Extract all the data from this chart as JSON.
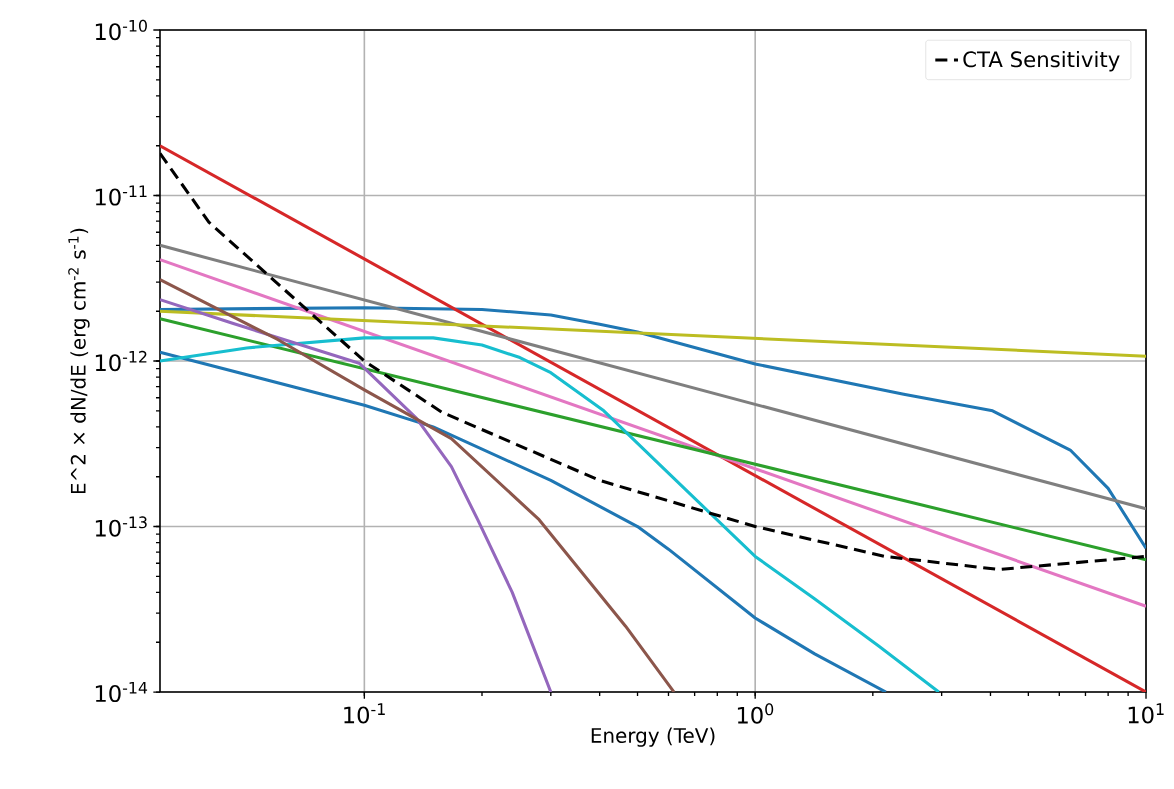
{
  "chart_data": {
    "type": "line",
    "xlabel": "Energy (TeV)",
    "ylabel": "E^2 × dN/dE (erg cm$^{-2}$ s$^{-1}$)",
    "log": "xy",
    "grid": true,
    "legend": "top right",
    "xlim": [
      0.03,
      10
    ],
    "ylim": [
      1e-14,
      1e-10
    ],
    "xticks": [
      {
        "value": 0.1,
        "label": "10$^{-1}$"
      },
      {
        "value": 1,
        "label": "10$^{0}$"
      },
      {
        "value": 10,
        "label": "10$^{1}$"
      }
    ],
    "yticks": [
      {
        "value": 1e-14,
        "label": "10$^{-14}$"
      },
      {
        "value": 1e-13,
        "label": "10$^{-13}$"
      },
      {
        "value": 1e-12,
        "label": "10$^{-12}$"
      },
      {
        "value": 1e-11,
        "label": "10$^{-11}$"
      },
      {
        "value": 1e-10,
        "label": "10$^{-10}$"
      }
    ],
    "series": [
      {
        "color": "#1f77b4",
        "x": [
          0.03,
          0.1,
          0.2,
          0.3,
          0.4,
          0.5,
          1.0,
          2.4,
          4.05,
          6.4,
          8.0,
          10
        ],
        "values": [
          2.05e-12,
          2.1e-12,
          2.05e-12,
          1.9e-12,
          1.67e-12,
          1.5e-12,
          9.6e-13,
          6.3e-13,
          5e-13,
          2.9e-13,
          1.7e-13,
          7.4e-14
        ]
      },
      {
        "color": "#1f77b4",
        "x": [
          0.03,
          0.1,
          0.15,
          0.3,
          0.5,
          0.6,
          1.0,
          1.42,
          2.16
        ],
        "values": [
          1.13e-12,
          5.4e-13,
          4e-13,
          1.9e-13,
          1e-13,
          7.3e-14,
          2.8e-14,
          1.7e-14,
          1e-14
        ]
      },
      {
        "color": "#d62728",
        "x": [
          0.03,
          10
        ],
        "values": [
          2e-11,
          1e-14
        ]
      },
      {
        "color": "#7f7f7f",
        "x": [
          0.03,
          10
        ],
        "values": [
          5e-12,
          1.28e-13
        ]
      },
      {
        "color": "#e377c2",
        "x": [
          0.03,
          10
        ],
        "values": [
          4.1e-12,
          3.3e-14
        ]
      },
      {
        "color": "#2ca02c",
        "x": [
          0.03,
          10
        ],
        "values": [
          1.8e-12,
          6.3e-14
        ]
      },
      {
        "color": "#bcbd22",
        "x": [
          0.03,
          10
        ],
        "values": [
          2e-12,
          1.07e-12
        ]
      },
      {
        "color": "#17becf",
        "x": [
          0.03,
          0.05,
          0.1,
          0.15,
          0.2,
          0.25,
          0.3,
          0.41,
          0.6,
          1.0,
          1.41,
          2.07,
          2.95
        ],
        "values": [
          1e-12,
          1.2e-12,
          1.38e-12,
          1.38e-12,
          1.25e-12,
          1.05e-12,
          8.5e-13,
          5e-13,
          2.1e-13,
          6.6e-14,
          3.7e-14,
          1.9e-14,
          1e-14
        ]
      },
      {
        "color": "#9467bd",
        "x": [
          0.03,
          0.046,
          0.097,
          0.136,
          0.167,
          0.195,
          0.239,
          0.3
        ],
        "values": [
          2.35e-12,
          1.69e-12,
          9.7e-13,
          4.5e-13,
          2.3e-13,
          1.1e-13,
          4e-14,
          1e-14
        ]
      },
      {
        "color": "#8c564b",
        "x": [
          0.03,
          0.06,
          0.1,
          0.167,
          0.28,
          0.466,
          0.62
        ],
        "values": [
          3.1e-12,
          1.35e-12,
          6.7e-13,
          3.4e-13,
          1.1e-13,
          2.5e-14,
          1e-14
        ]
      },
      {
        "name": "CTA Sensitivity",
        "color": "#000000",
        "line_style": "dashed",
        "x": [
          0.03,
          0.04,
          0.1,
          0.158,
          0.4,
          1.0,
          2.15,
          4.2,
          10
        ],
        "values": [
          1.8e-11,
          6.9e-12,
          1e-12,
          4.9e-13,
          1.9e-13,
          1e-13,
          6.6e-14,
          5.5e-14,
          6.6e-14
        ]
      }
    ]
  }
}
